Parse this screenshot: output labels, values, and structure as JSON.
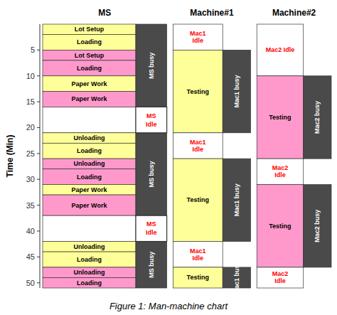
{
  "chart_data": {
    "type": "gantt",
    "title": "Figure 1: Man-machine chart",
    "y_label": "Time (Min)",
    "ylim": [
      51,
      0
    ],
    "yticks": [
      5,
      10,
      15,
      20,
      25,
      30,
      35,
      40,
      45,
      50
    ],
    "columns": [
      {
        "header": "MS",
        "tasks": [
          {
            "label": "Lot Setup",
            "start": 0,
            "end": 2,
            "color": "#FFFF99",
            "text_color": "#000000"
          },
          {
            "label": "Loading",
            "start": 2,
            "end": 5,
            "color": "#FFFF99",
            "text_color": "#000000"
          },
          {
            "label": "Lot Setup",
            "start": 5,
            "end": 7,
            "color": "#FF99CC",
            "text_color": "#000000"
          },
          {
            "label": "Loading",
            "start": 7,
            "end": 10,
            "color": "#FF99CC",
            "text_color": "#000000"
          },
          {
            "label": "Paper Work",
            "start": 10,
            "end": 13,
            "color": "#FFFF99",
            "text_color": "#000000"
          },
          {
            "label": "Paper Work",
            "start": 13,
            "end": 16,
            "color": "#FF99CC",
            "text_color": "#000000"
          },
          {
            "label": null,
            "start": 16,
            "end": 21,
            "color": "#FFFFFF",
            "text_color": "#000000"
          },
          {
            "label": "Unloading",
            "start": 21,
            "end": 23,
            "color": "#FFFF99",
            "text_color": "#000000"
          },
          {
            "label": "Loading",
            "start": 23,
            "end": 26,
            "color": "#FFFF99",
            "text_color": "#000000"
          },
          {
            "label": "Unloading",
            "start": 26,
            "end": 28,
            "color": "#FF99CC",
            "text_color": "#000000"
          },
          {
            "label": "Loading",
            "start": 28,
            "end": 31,
            "color": "#FF99CC",
            "text_color": "#000000"
          },
          {
            "label": "Paper Work",
            "start": 31,
            "end": 33,
            "color": "#FFFF99",
            "text_color": "#000000"
          },
          {
            "label": "Paper Work",
            "start": 33,
            "end": 37,
            "color": "#FF99CC",
            "text_color": "#000000"
          },
          {
            "label": null,
            "start": 37,
            "end": 42,
            "color": "#FFFFFF",
            "text_color": "#000000"
          },
          {
            "label": "Unloading",
            "start": 42,
            "end": 44,
            "color": "#FFFF99",
            "text_color": "#000000"
          },
          {
            "label": "Loading",
            "start": 44,
            "end": 47,
            "color": "#FFFF99",
            "text_color": "#000000"
          },
          {
            "label": "Unloading",
            "start": 47,
            "end": 49,
            "color": "#FF99CC",
            "text_color": "#000000"
          },
          {
            "label": "Loading",
            "start": 49,
            "end": 51,
            "color": "#FF99CC",
            "text_color": "#000000"
          }
        ],
        "busy": {
          "label": "MS busy",
          "color": "#4A4A4A",
          "text_color": "#FFFFFF",
          "segments": [
            {
              "start": 0,
              "end": 16
            },
            {
              "start": 21,
              "end": 37
            },
            {
              "start": 42,
              "end": 51
            }
          ]
        },
        "idle": {
          "label": "MS\nIdle",
          "color": "#FFFFFF",
          "text_color": "#FF0000",
          "segments": [
            {
              "start": 16,
              "end": 21
            },
            {
              "start": 37,
              "end": 42
            }
          ]
        }
      },
      {
        "header": "Machine#1",
        "tasks": [
          {
            "label": "Mac1\nIdle",
            "start": 0,
            "end": 5,
            "color": "#FFFFFF",
            "text_color": "#FF0000"
          },
          {
            "label": "Testing",
            "start": 5,
            "end": 21,
            "color": "#FFFF99",
            "text_color": "#000000"
          },
          {
            "label": "Mac1\nIdle",
            "start": 21,
            "end": 26,
            "color": "#FFFFFF",
            "text_color": "#FF0000"
          },
          {
            "label": "Testing",
            "start": 26,
            "end": 42,
            "color": "#FFFF99",
            "text_color": "#000000"
          },
          {
            "label": "Mac1\nIdle",
            "start": 42,
            "end": 47,
            "color": "#FFFFFF",
            "text_color": "#FF0000"
          },
          {
            "label": "Testing",
            "start": 47,
            "end": 51,
            "color": "#FFFF99",
            "text_color": "#000000"
          }
        ],
        "busy": {
          "label": "Mac1 busy",
          "color": "#4A4A4A",
          "text_color": "#FFFFFF",
          "segments": [
            {
              "start": 5,
              "end": 21
            },
            {
              "start": 26,
              "end": 42
            },
            {
              "start": 47,
              "end": 51
            }
          ]
        }
      },
      {
        "header": "Machine#2",
        "tasks": [
          {
            "label": "Mac2 Idle",
            "start": 0,
            "end": 10,
            "color": "#FFFFFF",
            "text_color": "#FF0000"
          },
          {
            "label": "Testing",
            "start": 10,
            "end": 26,
            "color": "#FF99CC",
            "text_color": "#000000"
          },
          {
            "label": "Mac2\nIdle",
            "start": 26,
            "end": 31,
            "color": "#FFFFFF",
            "text_color": "#FF0000"
          },
          {
            "label": "Testing",
            "start": 31,
            "end": 47,
            "color": "#FF99CC",
            "text_color": "#000000"
          },
          {
            "label": "Mac2\nIdle",
            "start": 47,
            "end": 51,
            "color": "#FFFFFF",
            "text_color": "#FF0000"
          }
        ],
        "busy": {
          "label": "Mac2 busy",
          "color": "#4A4A4A",
          "text_color": "#FFFFFF",
          "segments": [
            {
              "start": 10,
              "end": 26
            },
            {
              "start": 31,
              "end": 47
            }
          ]
        }
      }
    ]
  }
}
